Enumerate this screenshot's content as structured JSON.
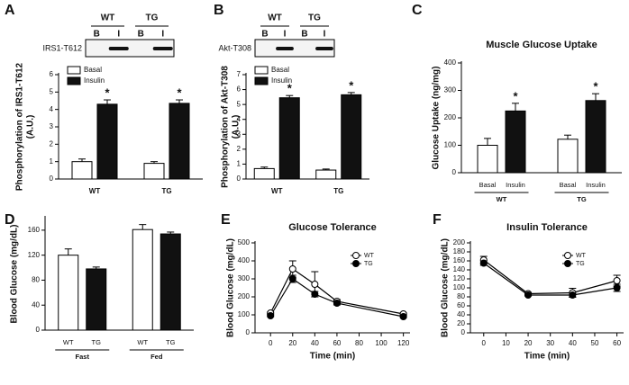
{
  "chart_data": [
    {
      "type": "bar",
      "panel": "A",
      "blot": {
        "protein": "IRS1-T612",
        "groups": [
          "WT",
          "TG"
        ],
        "lanes": [
          "B",
          "I",
          "B",
          "I"
        ]
      },
      "ylabel": [
        "Phosphorylation of IRS1-T612",
        "(A.U.)"
      ],
      "categories": [
        "WT",
        "TG"
      ],
      "series": [
        {
          "name": "Basal",
          "color": "#ffffff",
          "values": [
            1.0,
            0.9
          ],
          "errors": [
            0.15,
            0.1
          ]
        },
        {
          "name": "Insulin",
          "color": "#111111",
          "values": [
            4.3,
            4.35
          ],
          "errors": [
            0.25,
            0.2
          ],
          "annotations": [
            "*",
            "*"
          ]
        }
      ],
      "ylim": [
        0,
        6
      ],
      "yticks": [
        0,
        1,
        2,
        3,
        4,
        5,
        6
      ]
    },
    {
      "type": "bar",
      "panel": "B",
      "blot": {
        "protein": "Akt-T308",
        "groups": [
          "WT",
          "TG"
        ],
        "lanes": [
          "B",
          "I",
          "B",
          "I"
        ]
      },
      "ylabel": [
        "Phosphorylation of Akt-T308",
        "(A.U.)"
      ],
      "categories": [
        "WT",
        "TG"
      ],
      "series": [
        {
          "name": "Basal",
          "color": "#ffffff",
          "values": [
            0.7,
            0.6
          ],
          "errors": [
            0.1,
            0.07
          ]
        },
        {
          "name": "Insulin",
          "color": "#111111",
          "values": [
            5.45,
            5.65
          ],
          "errors": [
            0.15,
            0.15
          ],
          "annotations": [
            "*",
            "*"
          ]
        }
      ],
      "ylim": [
        0,
        7
      ],
      "yticks": [
        0,
        1,
        2,
        3,
        4,
        5,
        6,
        7
      ]
    },
    {
      "type": "bar",
      "panel": "C",
      "title": "Muscle Glucose Uptake",
      "ylabel": "Glucose Uptake (ng/mg)",
      "categories": [
        "Basal",
        "Insulin",
        "Basal",
        "Insulin"
      ],
      "groups": [
        "WT",
        "TG"
      ],
      "values": [
        100,
        225,
        122,
        263
      ],
      "errors": [
        25,
        28,
        15,
        25
      ],
      "colors": [
        "#ffffff",
        "#111111",
        "#ffffff",
        "#111111"
      ],
      "annotations": [
        null,
        "*",
        null,
        "*"
      ],
      "ylim": [
        0,
        400
      ],
      "yticks": [
        0,
        100,
        200,
        300,
        400
      ]
    },
    {
      "type": "bar",
      "panel": "D",
      "ylabel": "Blood Glucose (mg/dL)",
      "categories": [
        "WT",
        "TG",
        "WT",
        "TG"
      ],
      "groups": [
        "Fast",
        "Fed"
      ],
      "values": [
        120,
        98,
        161,
        154
      ],
      "errors": [
        10,
        3,
        8,
        3
      ],
      "colors": [
        "#ffffff",
        "#111111",
        "#ffffff",
        "#111111"
      ],
      "ylim": [
        0,
        180
      ],
      "yticks": [
        0,
        40,
        80,
        120,
        160
      ]
    },
    {
      "type": "line",
      "panel": "E",
      "title": "Glucose Tolerance",
      "xlabel": "Time (min)",
      "ylabel": "Blood Glucose (mg/dL)",
      "x": [
        0,
        20,
        40,
        60,
        120
      ],
      "series": [
        {
          "name": "WT",
          "color": "#000000",
          "fill": "#ffffff",
          "values": [
            110,
            355,
            270,
            175,
            105
          ],
          "errors": [
            5,
            45,
            70,
            10,
            5
          ]
        },
        {
          "name": "TG",
          "color": "#000000",
          "fill": "#000000",
          "values": [
            95,
            300,
            215,
            165,
            90
          ],
          "errors": [
            5,
            20,
            15,
            10,
            5
          ]
        }
      ],
      "xlim": [
        -14,
        126
      ],
      "xticks": [
        0,
        20,
        40,
        60,
        80,
        100,
        120
      ],
      "ylim": [
        0,
        500
      ],
      "yticks": [
        0,
        100,
        200,
        300,
        400,
        500
      ]
    },
    {
      "type": "line",
      "panel": "F",
      "title": "Insulin Tolerance",
      "xlabel": "Time (min)",
      "ylabel": "Blood Glucose (mg/dL)",
      "x": [
        0,
        20,
        40,
        60
      ],
      "series": [
        {
          "name": "WT",
          "color": "#000000",
          "fill": "#ffffff",
          "values": [
            162,
            87,
            89,
            116
          ],
          "errors": [
            8,
            3,
            10,
            12
          ]
        },
        {
          "name": "TG",
          "color": "#000000",
          "fill": "#000000",
          "values": [
            155,
            84,
            84,
            100
          ],
          "errors": [
            5,
            2,
            4,
            8
          ]
        }
      ],
      "xlim": [
        -6,
        63
      ],
      "xticks": [
        0,
        10,
        20,
        30,
        40,
        50,
        60
      ],
      "ylim": [
        0,
        200
      ],
      "yticks": [
        0,
        20,
        40,
        60,
        80,
        100,
        120,
        140,
        160,
        180,
        200
      ]
    }
  ]
}
